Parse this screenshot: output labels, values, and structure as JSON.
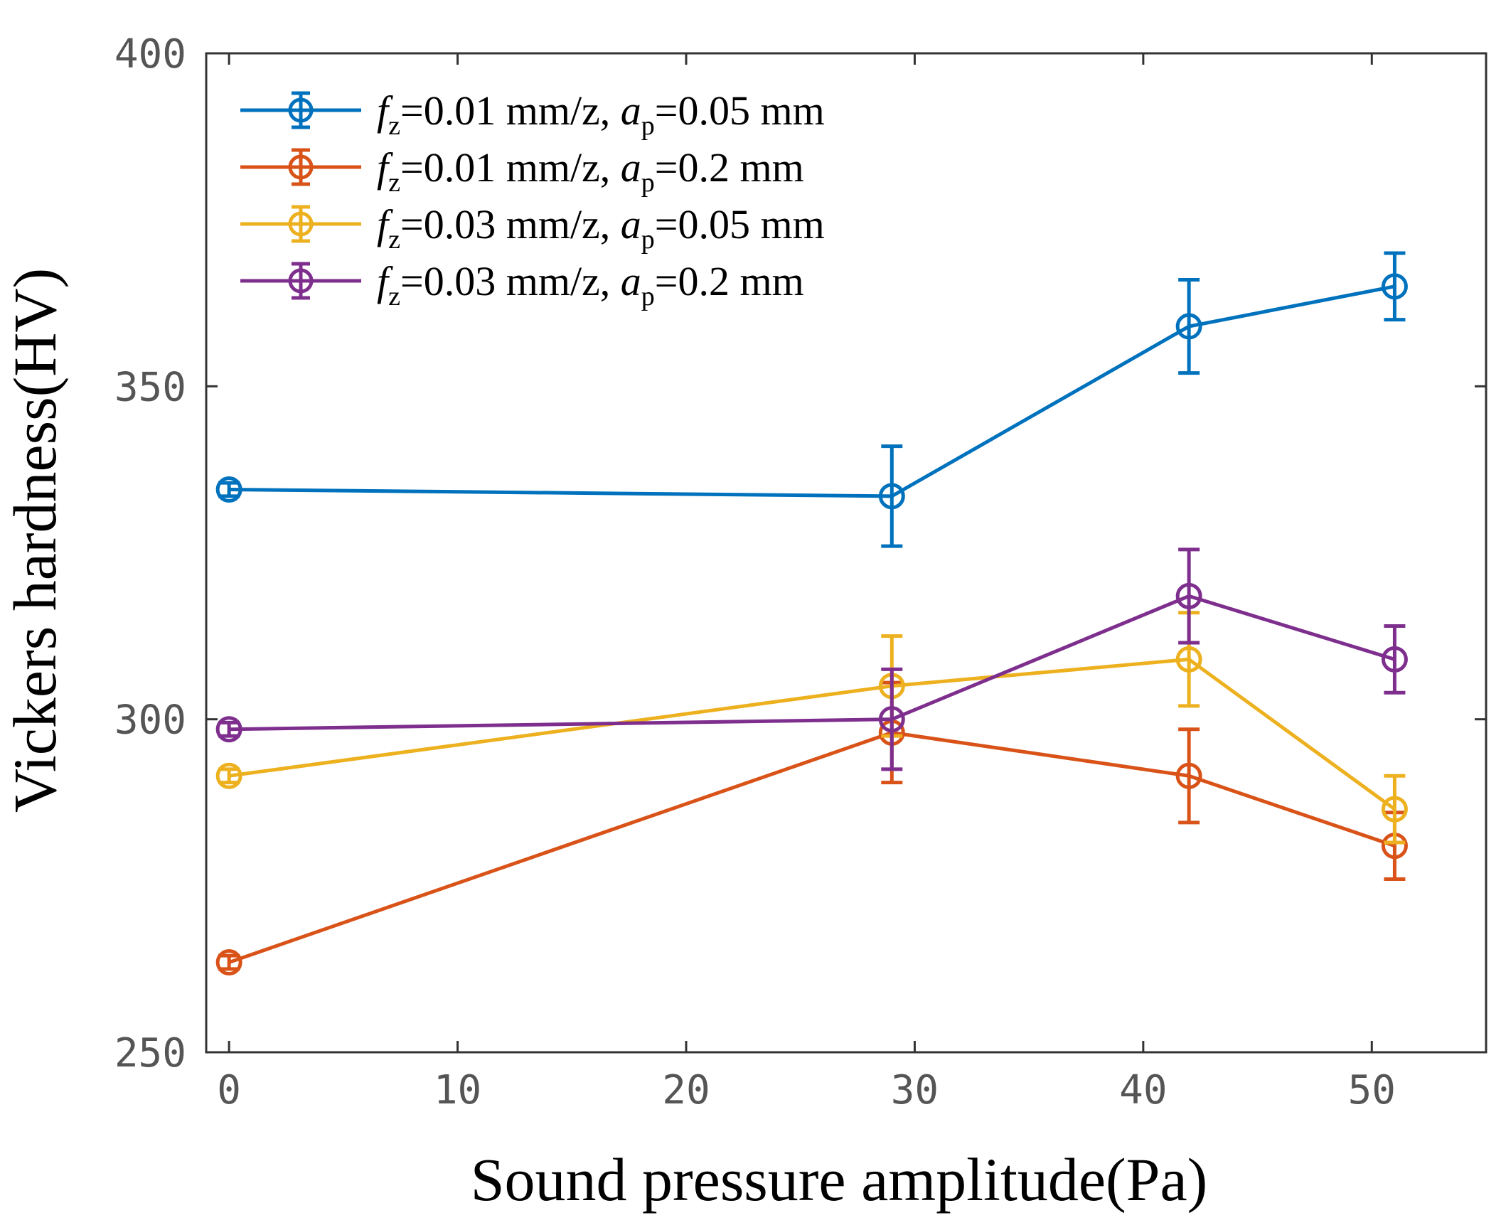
{
  "chart_data": {
    "type": "line",
    "title": "",
    "xlabel": "Sound pressure amplitude(Pa)",
    "ylabel": "Vickers hardness(HV)",
    "xlim": [
      -1,
      55
    ],
    "ylim": [
      250,
      400
    ],
    "xticks": [
      0,
      10,
      20,
      30,
      40,
      50
    ],
    "yticks": [
      250,
      300,
      350,
      400
    ],
    "grid": false,
    "legend_position": "top-left",
    "x": [
      0,
      29,
      42,
      51
    ],
    "series": [
      {
        "name": "fz=0.01 mm/z, ap=0.05 mm",
        "legend": {
          "v1": "f",
          "s1": "z",
          "t1": "=0.01 mm/z, ",
          "v2": "a",
          "s2": "p",
          "t2": "=0.05 mm"
        },
        "color": "#0072BD",
        "values": [
          334.5,
          333.5,
          359,
          365
        ],
        "errors": [
          1,
          7.5,
          7,
          5
        ]
      },
      {
        "name": "fz=0.01 mm/z, ap=0.2 mm",
        "legend": {
          "v1": "f",
          "s1": "z",
          "t1": "=0.01 mm/z, ",
          "v2": "a",
          "s2": "p",
          "t2": "=0.2 mm"
        },
        "color": "#D95319",
        "values": [
          263.5,
          298,
          291.5,
          281
        ],
        "errors": [
          1,
          7.5,
          7,
          5
        ]
      },
      {
        "name": "fz=0.03 mm/z, ap=0.05 mm",
        "legend": {
          "v1": "f",
          "s1": "z",
          "t1": "=0.03 mm/z, ",
          "v2": "a",
          "s2": "p",
          "t2": "=0.05 mm"
        },
        "color": "#EDB120",
        "values": [
          291.5,
          305,
          309,
          286.5
        ],
        "errors": [
          1,
          7.5,
          7,
          5
        ]
      },
      {
        "name": "fz=0.03 mm/z, ap=0.2 mm",
        "legend": {
          "v1": "f",
          "s1": "z",
          "t1": "=0.03 mm/z, ",
          "v2": "a",
          "s2": "p",
          "t2": "=0.2 mm"
        },
        "color": "#7E2F8E",
        "values": [
          298.5,
          300,
          318.5,
          309
        ],
        "errors": [
          1,
          7.5,
          7,
          5
        ]
      }
    ]
  }
}
